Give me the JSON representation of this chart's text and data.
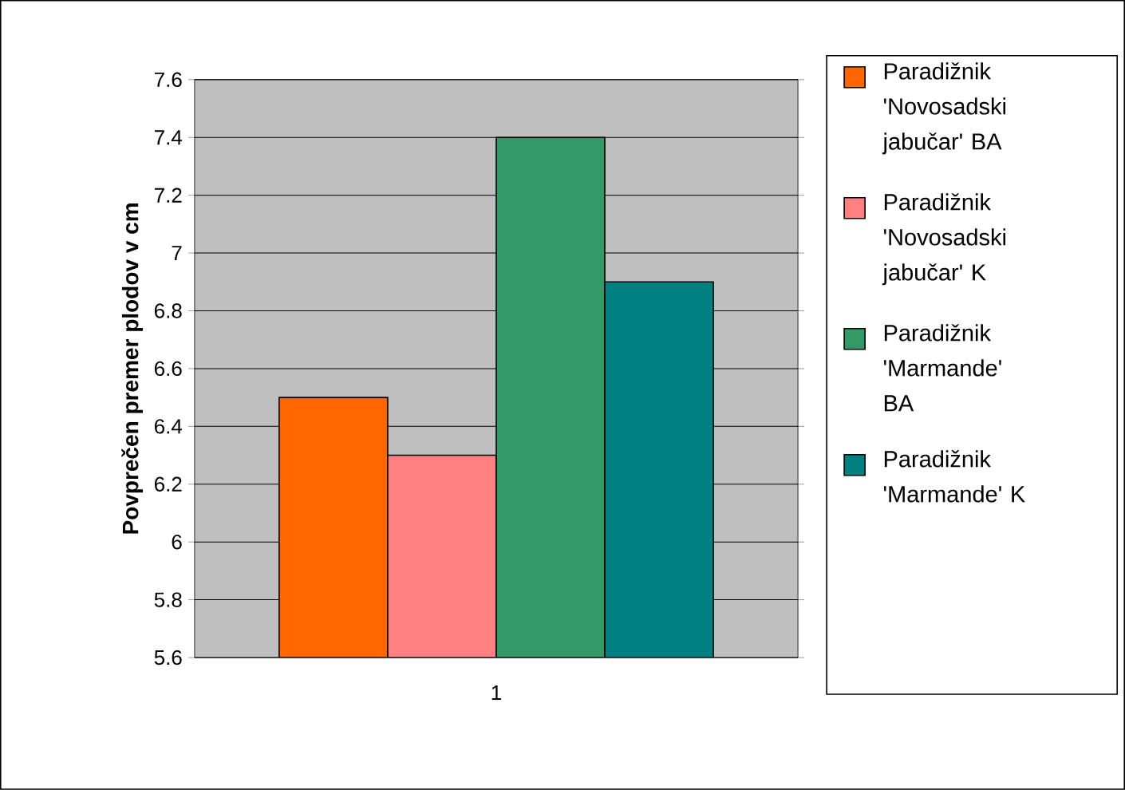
{
  "chart_data": {
    "type": "bar",
    "ylabel": "Povprečen premer plodov v cm",
    "categories": [
      "1"
    ],
    "series": [
      {
        "name": "Paradižnik 'Novosadski jabučar' BA",
        "color": "#ff6600",
        "values": [
          6.5
        ]
      },
      {
        "name": "Paradižnik 'Novosadski jabučar' K",
        "color": "#ff8080",
        "values": [
          6.3
        ]
      },
      {
        "name": "Paradižnik 'Marmande' BA",
        "color": "#339966",
        "values": [
          7.4
        ]
      },
      {
        "name": "Paradižnik 'Marmande' K",
        "color": "#008080",
        "values": [
          6.9
        ]
      }
    ],
    "ylim": [
      5.6,
      7.6
    ],
    "yticks": [
      5.6,
      5.8,
      6,
      6.2,
      6.4,
      6.6,
      6.8,
      7,
      7.2,
      7.4,
      7.6
    ],
    "grid": "y",
    "legend": "right"
  }
}
